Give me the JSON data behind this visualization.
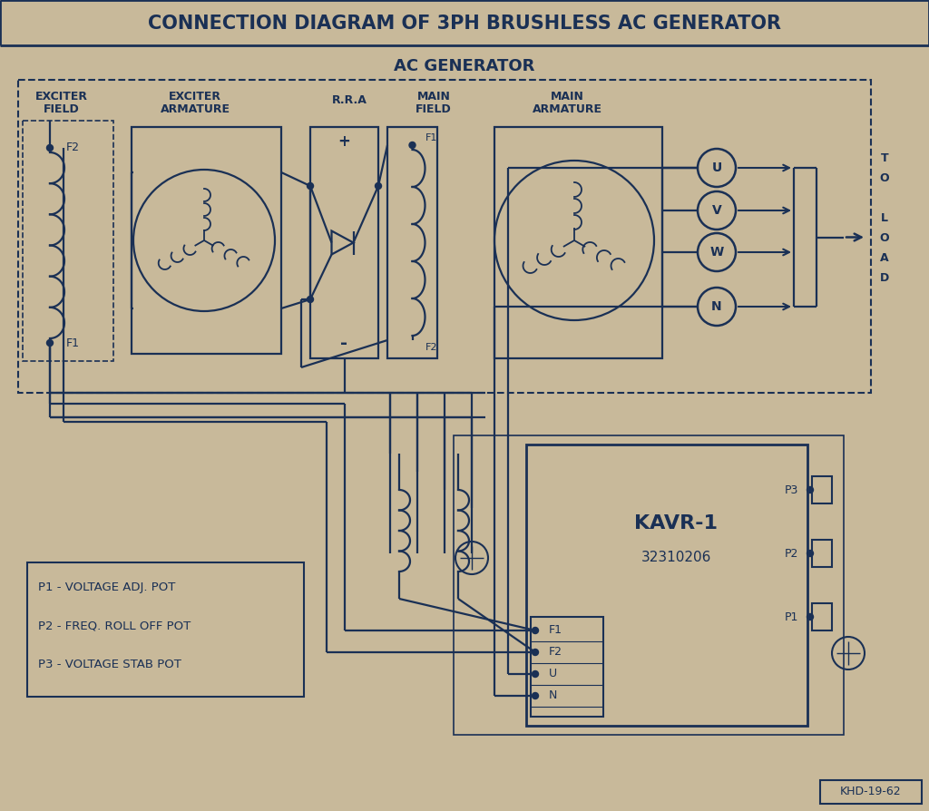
{
  "title_top": "CONNECTION DIAGRAM OF 3PH BRUSHLESS AC GENERATOR",
  "title_sub": "AC GENERATOR",
  "bg_color": "#c8b99a",
  "line_color": "#1a3055",
  "text_color": "#1a3055",
  "legend_lines": [
    "P1 - VOLTAGE ADJ. POT",
    "P2 - FREQ. ROLL OFF POT",
    "P3 - VOLTAGE STAB POT"
  ],
  "kavr_line1": "KAVR-1",
  "kavr_line2": "32310206",
  "part_number": "KHD-19-62",
  "to_load_chars": [
    "T",
    "O",
    "",
    "L",
    "O",
    "A",
    "D"
  ],
  "sec_exciter_field_l1": "EXCITER",
  "sec_exciter_field_l2": "FIELD",
  "sec_exciter_arm_l1": "EXCITER",
  "sec_exciter_arm_l2": "ARMATURE",
  "sec_rra": "R.R.A",
  "sec_main_field_l1": "MAIN",
  "sec_main_field_l2": "FIELD",
  "sec_main_arm_l1": "MAIN",
  "sec_main_arm_l2": "ARMATURE",
  "terminal_uvwn": [
    "U",
    "V",
    "W",
    "N"
  ],
  "avr_terms": [
    "F1",
    "F2",
    "U",
    "N"
  ],
  "p_labels": [
    "P3",
    "P2",
    "P1"
  ],
  "f2_label": "F2",
  "f1_label": "F1",
  "mf_f1": "F1",
  "mf_f2": "F2",
  "plus": "+",
  "minus": "-"
}
